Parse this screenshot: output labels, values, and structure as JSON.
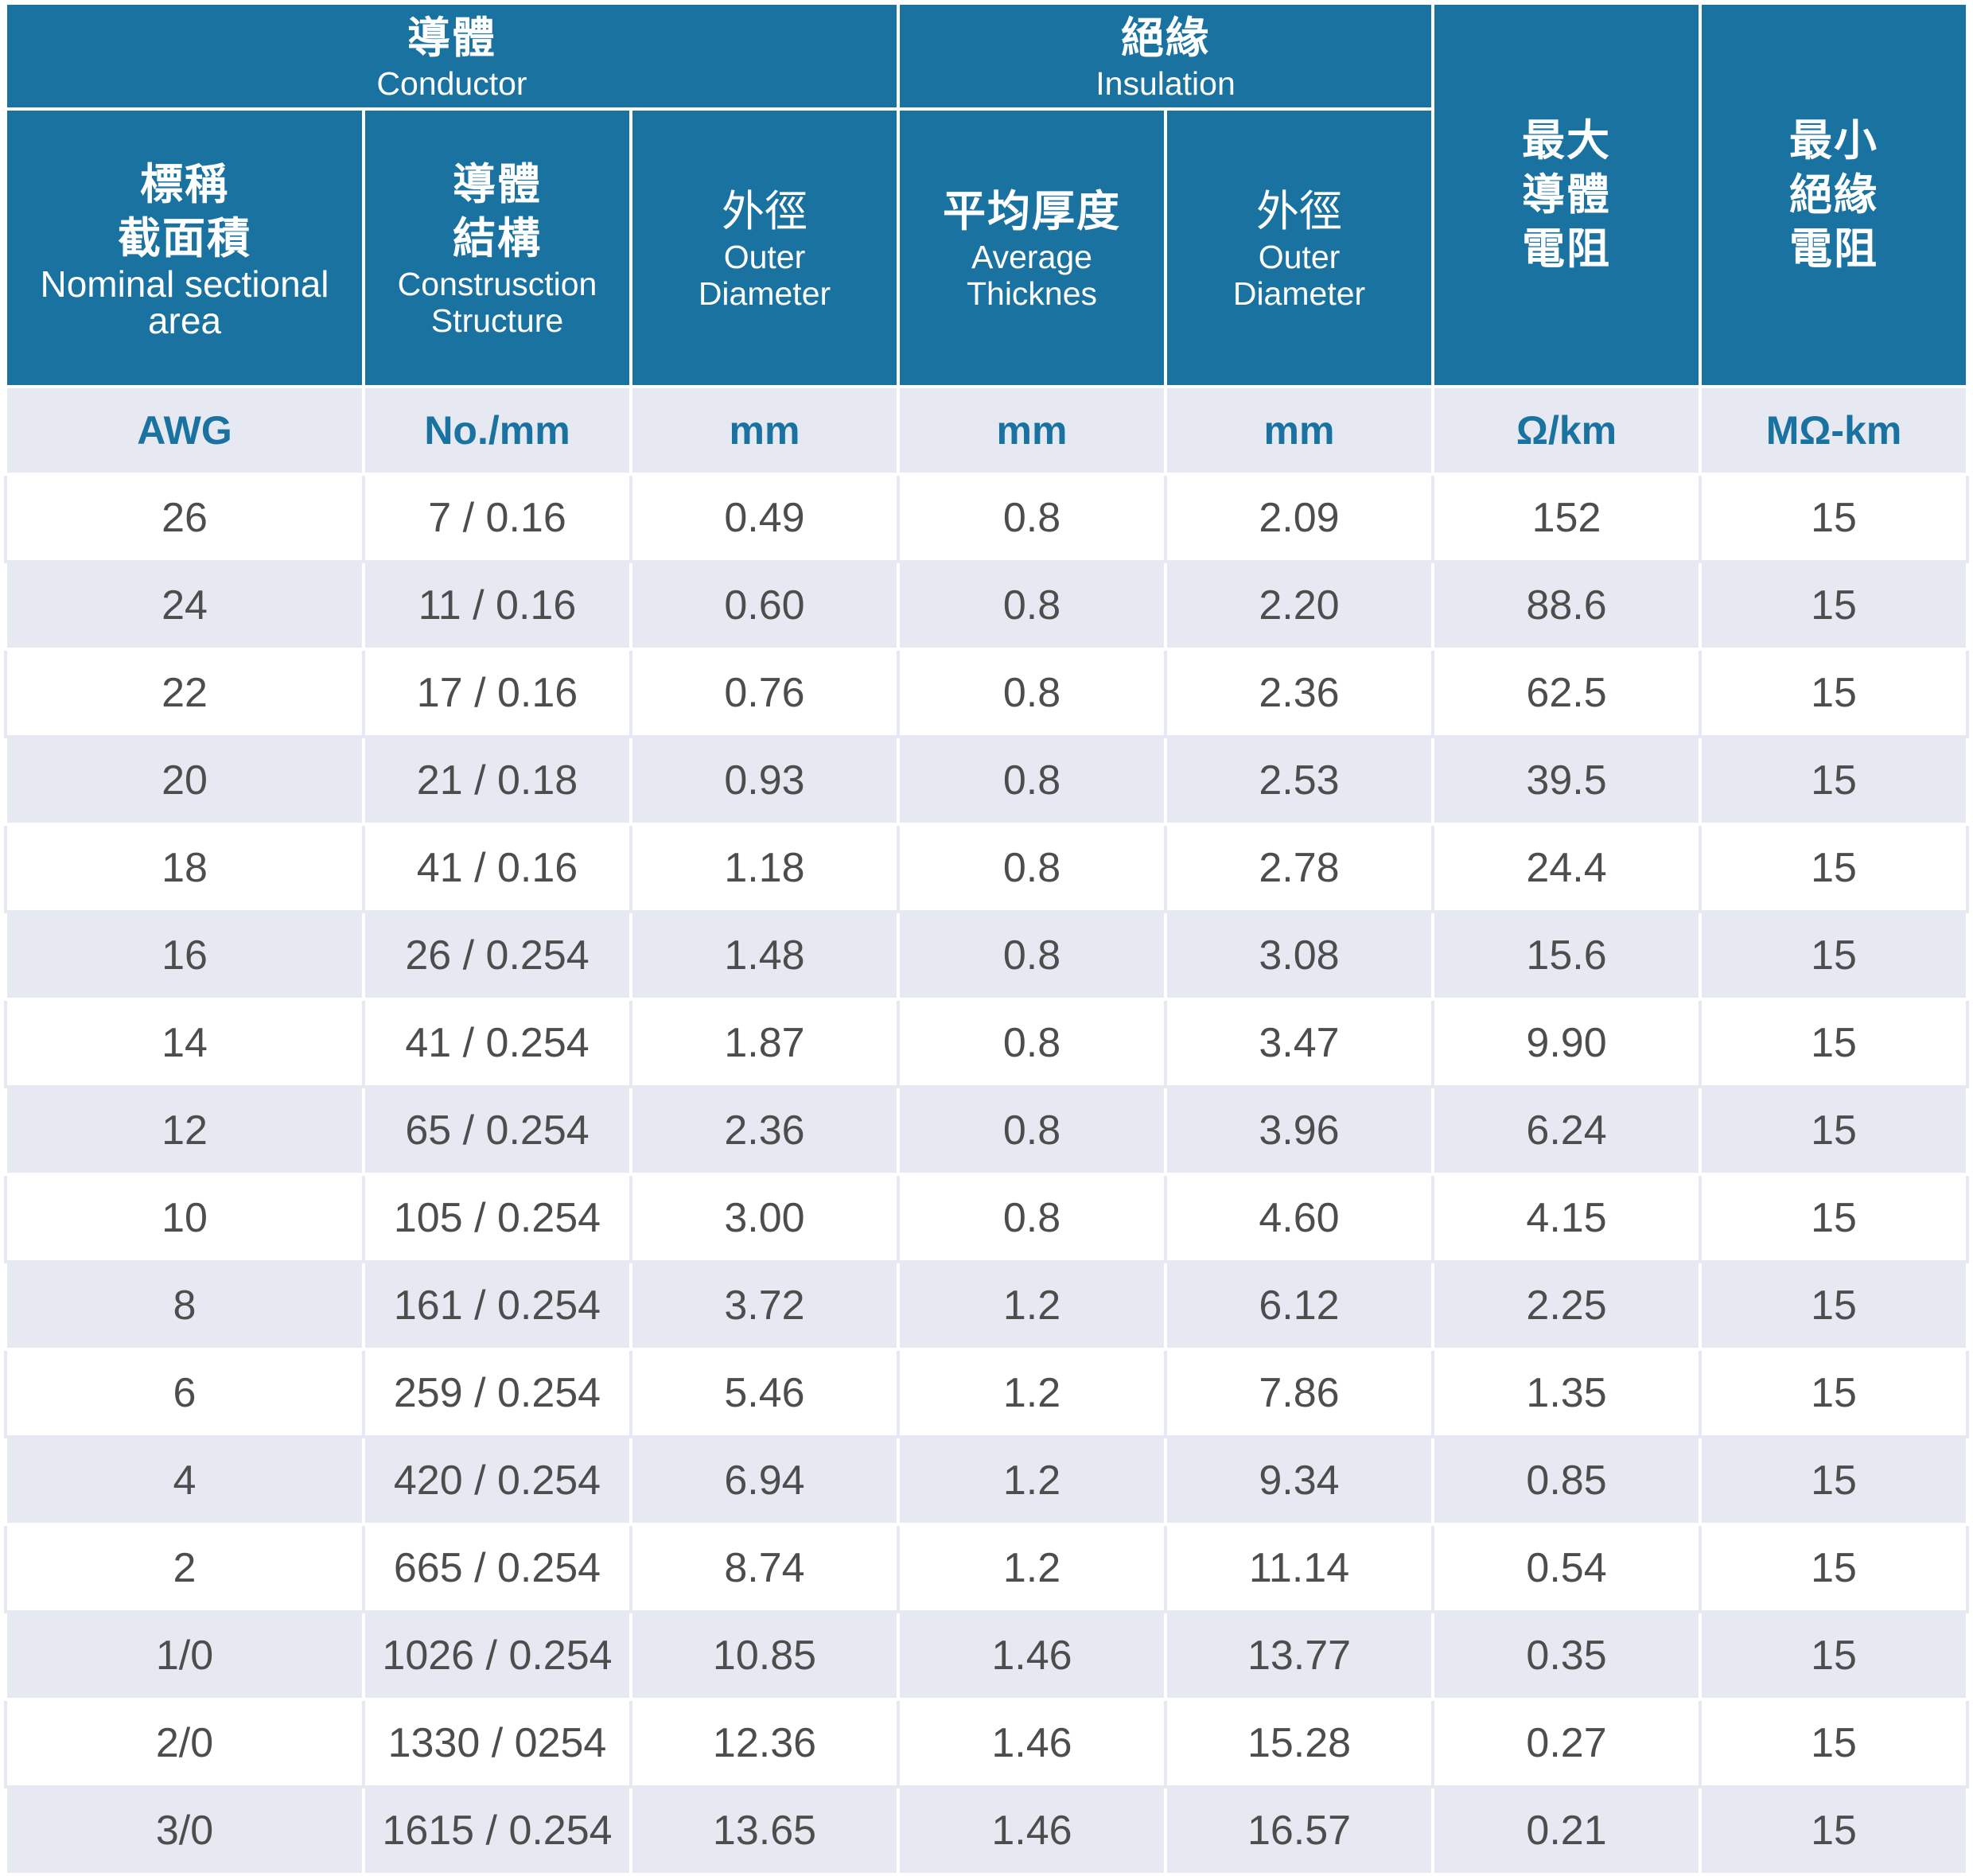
{
  "header": {
    "conductor_group": {
      "zh": "導體",
      "en": "Conductor"
    },
    "insulation_group": {
      "zh": "絕緣",
      "en": "Insulation"
    },
    "nominal_area": {
      "zh1": "標稱",
      "zh2": "截面積",
      "en1": "Nominal sectional",
      "en2": "area"
    },
    "construction": {
      "zh1": "導體",
      "zh2": "結構",
      "en1": "Construsction",
      "en2": "Structure"
    },
    "conductor_od": {
      "zh": "外徑",
      "en1": "Outer",
      "en2": "Diameter"
    },
    "avg_thickness": {
      "zh": "平均厚度",
      "en1": "Average",
      "en2": "Thicknes"
    },
    "insulation_od": {
      "zh": "外徑",
      "en1": "Outer",
      "en2": "Diameter"
    },
    "max_resistance": {
      "zh1": "最大",
      "zh2": "導體",
      "zh3": "電阻"
    },
    "min_insulation": {
      "zh1": "最小",
      "zh2": "絕緣",
      "zh3": "電阻"
    }
  },
  "units": [
    "AWG",
    "No./mm",
    "mm",
    "mm",
    "mm",
    "Ω/km",
    "MΩ-km"
  ],
  "rows": [
    [
      "26",
      "7 / 0.16",
      "0.49",
      "0.8",
      "2.09",
      "152",
      "15"
    ],
    [
      "24",
      "11 / 0.16",
      "0.60",
      "0.8",
      "2.20",
      "88.6",
      "15"
    ],
    [
      "22",
      "17 / 0.16",
      "0.76",
      "0.8",
      "2.36",
      "62.5",
      "15"
    ],
    [
      "20",
      "21 / 0.18",
      "0.93",
      "0.8",
      "2.53",
      "39.5",
      "15"
    ],
    [
      "18",
      "41 / 0.16",
      "1.18",
      "0.8",
      "2.78",
      "24.4",
      "15"
    ],
    [
      "16",
      "26 / 0.254",
      "1.48",
      "0.8",
      "3.08",
      "15.6",
      "15"
    ],
    [
      "14",
      "41 / 0.254",
      "1.87",
      "0.8",
      "3.47",
      "9.90",
      "15"
    ],
    [
      "12",
      "65 / 0.254",
      "2.36",
      "0.8",
      "3.96",
      "6.24",
      "15"
    ],
    [
      "10",
      "105 / 0.254",
      "3.00",
      "0.8",
      "4.60",
      "4.15",
      "15"
    ],
    [
      "8",
      "161 / 0.254",
      "3.72",
      "1.2",
      "6.12",
      "2.25",
      "15"
    ],
    [
      "6",
      "259 / 0.254",
      "5.46",
      "1.2",
      "7.86",
      "1.35",
      "15"
    ],
    [
      "4",
      "420 / 0.254",
      "6.94",
      "1.2",
      "9.34",
      "0.85",
      "15"
    ],
    [
      "2",
      "665 / 0.254",
      "8.74",
      "1.2",
      "11.14",
      "0.54",
      "15"
    ],
    [
      "1/0",
      "1026 / 0.254",
      "10.85",
      "1.46",
      "13.77",
      "0.35",
      "15"
    ],
    [
      "2/0",
      "1330 / 0254",
      "12.36",
      "1.46",
      "15.28",
      "0.27",
      "15"
    ],
    [
      "3/0",
      "1615 / 0.254",
      "13.65",
      "1.46",
      "16.57",
      "0.21",
      "15"
    ]
  ]
}
